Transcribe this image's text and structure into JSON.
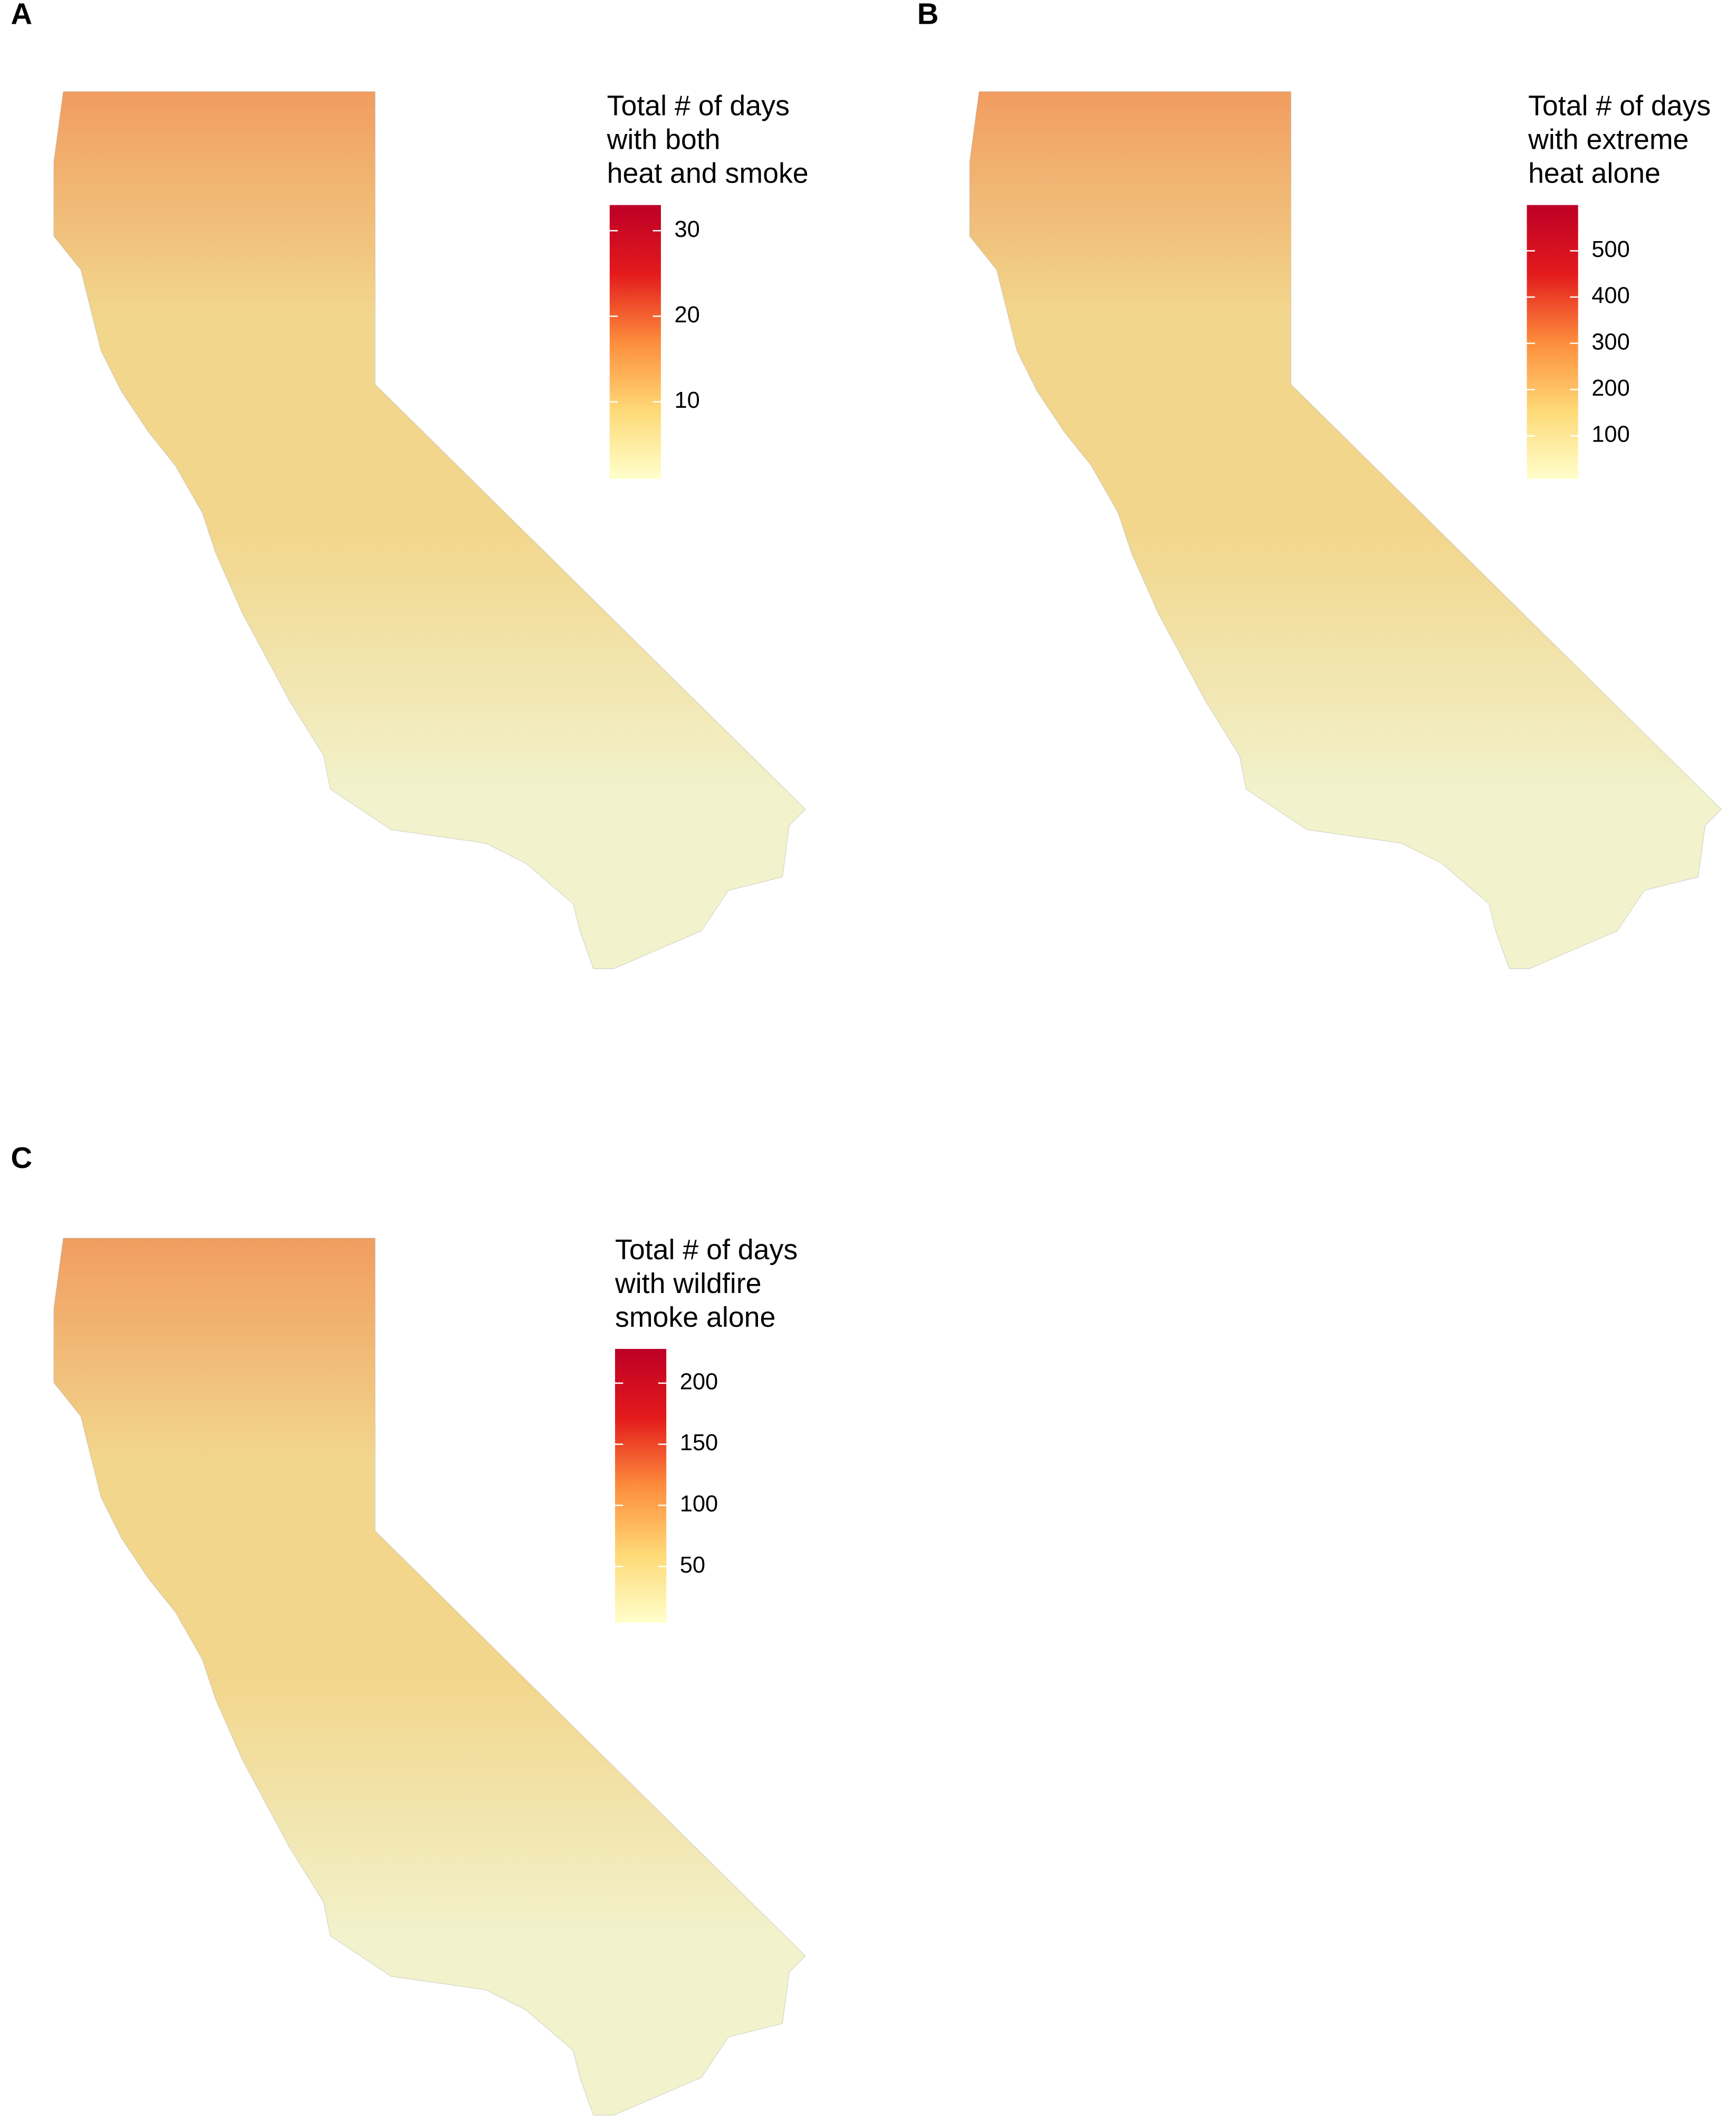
{
  "chart_data": [
    {
      "type": "choropleth",
      "panel_label": "A",
      "legend_title": [
        "Total # of days",
        "with both",
        "heat and smoke"
      ],
      "ylim": [
        1,
        33
      ],
      "yticks": [
        10,
        20,
        30
      ],
      "colors": [
        "#ffffcc",
        "#fed976",
        "#fd8d3c",
        "#e31a1c",
        "#bd0026"
      ],
      "missing_color": "#cccccc"
    },
    {
      "type": "choropleth",
      "panel_label": "B",
      "legend_title": [
        "Total # of days",
        "with extreme",
        "heat alone"
      ],
      "ylim": [
        7,
        599
      ],
      "yticks": [
        100,
        200,
        300,
        400,
        500
      ],
      "colors": [
        "#ffffcc",
        "#fed976",
        "#fd8d3c",
        "#e31a1c",
        "#bd0026"
      ],
      "missing_color": "#cccccc"
    },
    {
      "type": "choropleth",
      "panel_label": "C",
      "legend_title": [
        "Total # of days",
        "with wildfire",
        "smoke alone"
      ],
      "ylim": [
        4,
        228
      ],
      "yticks": [
        50,
        100,
        150,
        200
      ],
      "colors": [
        "#ffffcc",
        "#fed976",
        "#fd8d3c",
        "#e31a1c",
        "#bd0026"
      ],
      "missing_color": "#cccccc"
    }
  ]
}
